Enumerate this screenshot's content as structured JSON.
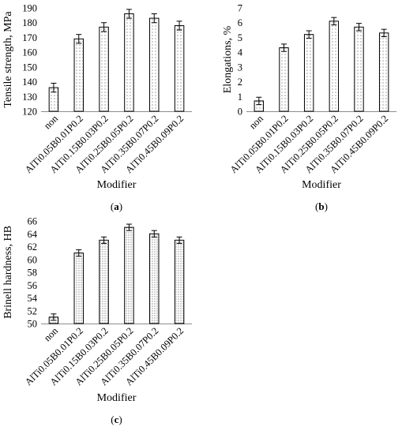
{
  "chart_data": [
    {
      "type": "bar",
      "panel_label": "(a)",
      "categories": [
        "non",
        "AlTi0.05B0.01P0.2",
        "AlTi0.15B0.03P0.2",
        "AlTi0.25B0.05P0.2",
        "AlTi0.35B0.07P0.2",
        "AlTi0.45B0.09P0.2"
      ],
      "values": [
        136,
        169,
        177,
        186,
        183,
        178
      ],
      "errors": [
        3,
        3,
        3,
        3,
        3,
        3
      ],
      "xlabel": "Modifier",
      "ylabel": "Tensile strength, MPa",
      "ylim": [
        120,
        190
      ],
      "yticks": [
        120,
        130,
        140,
        150,
        160,
        170,
        180,
        190
      ],
      "grid": false,
      "bar_fill": "dotted pattern"
    },
    {
      "type": "bar",
      "panel_label": "(b)",
      "categories": [
        "non",
        "AlTi0.05B0.01P0.2",
        "AlTi0.15B0.03P0.2",
        "AlTi0.25B0.05P0.2",
        "AlTi0.35B0.07P0.2",
        "AlTi0.45B0.09P0.2"
      ],
      "values": [
        0.7,
        4.3,
        5.2,
        6.1,
        5.7,
        5.3
      ],
      "errors": [
        0.25,
        0.25,
        0.25,
        0.25,
        0.25,
        0.25
      ],
      "xlabel": "Modifier",
      "ylabel": "Elongations, %",
      "ylim": [
        0,
        7
      ],
      "yticks": [
        0,
        1,
        2,
        3,
        4,
        5,
        6,
        7
      ],
      "grid": false,
      "bar_fill": "dotted pattern"
    },
    {
      "type": "bar",
      "panel_label": "(c)",
      "categories": [
        "non",
        "AlTi0.05B0.01P0.2",
        "AlTi0.15B0.03P0.2",
        "AlTi0.25B0.05P0.2",
        "AlTi0.35B0.07P0.2",
        "AlTi0.45B0.09P0.2"
      ],
      "values": [
        51,
        61,
        63,
        65,
        64,
        63
      ],
      "errors": [
        0.5,
        0.5,
        0.5,
        0.5,
        0.5,
        0.5
      ],
      "xlabel": "Modifier",
      "ylabel": "Brinell hardness, HB",
      "ylim": [
        50,
        66
      ],
      "yticks": [
        50,
        52,
        54,
        56,
        58,
        60,
        62,
        64,
        66
      ],
      "grid": false,
      "bar_fill": "dense dotted pattern"
    }
  ]
}
